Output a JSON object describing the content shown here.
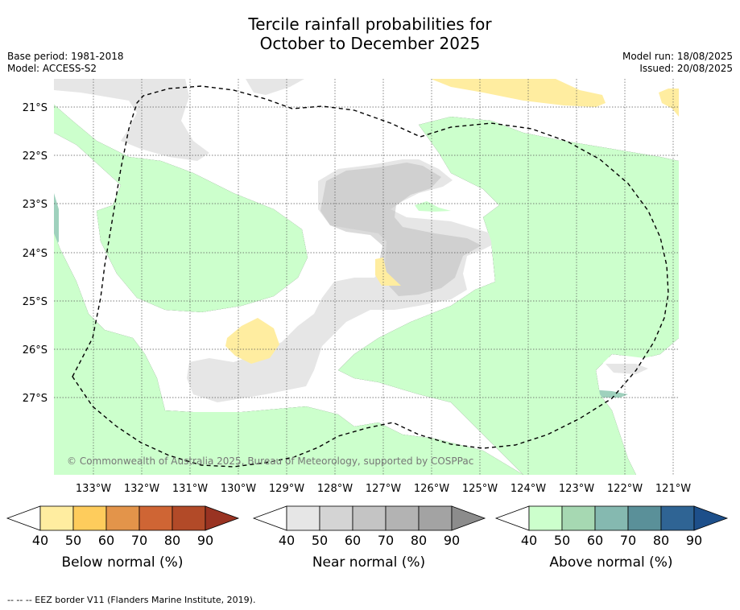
{
  "title": {
    "line1": "Tercile rainfall probabilities for",
    "line2": "October to December 2025"
  },
  "meta": {
    "base_period": "Base period: 1981-2018",
    "model": "Model: ACCESS-S2",
    "model_run": "Model run: 18/08/2025",
    "issued": "Issued: 20/08/2025"
  },
  "map": {
    "lat_labels": [
      "21°S",
      "22°S",
      "23°S",
      "24°S",
      "25°S",
      "26°S",
      "27°S"
    ],
    "lon_labels": [
      "133°W",
      "132°W",
      "131°W",
      "130°W",
      "129°W",
      "128°W",
      "127°W",
      "126°W",
      "125°W",
      "124°W",
      "123°W",
      "122°W",
      "121°W"
    ],
    "copyright": "© Commonwealth of Australia 2025, Bureau of Meteorology, supported by COSPPac",
    "colors": {
      "below_40": "#ffeda0",
      "near_40": "#e6e6e6",
      "near_50": "#bdbdbd",
      "above_40": "#ccffcc",
      "above_60": "#9fd1bd",
      "above_80": "#7fb3b8"
    }
  },
  "legends": [
    {
      "title": "Below normal (%)",
      "ticks": [
        "40",
        "50",
        "60",
        "70",
        "80",
        "90"
      ],
      "colors": [
        "#ffeda0",
        "#fecc5c",
        "#e3944a",
        "#cf6534",
        "#b24a28",
        "#993322"
      ]
    },
    {
      "title": "Near normal (%)",
      "ticks": [
        "40",
        "50",
        "60",
        "70",
        "80",
        "90"
      ],
      "colors": [
        "#e6e6e6",
        "#d4d4d4",
        "#c4c4c4",
        "#b3b3b3",
        "#a3a3a3",
        "#8c8c8c"
      ]
    },
    {
      "title": "Above normal (%)",
      "ticks": [
        "40",
        "50",
        "60",
        "70",
        "80",
        "90"
      ],
      "colors": [
        "#ccffcc",
        "#a6d8b2",
        "#85b9b0",
        "#5a9099",
        "#2f6494",
        "#1d4f8a"
      ]
    }
  ],
  "footnote": "--  --  -- EEZ border V11 (Flanders Marine Institute, 2019)."
}
